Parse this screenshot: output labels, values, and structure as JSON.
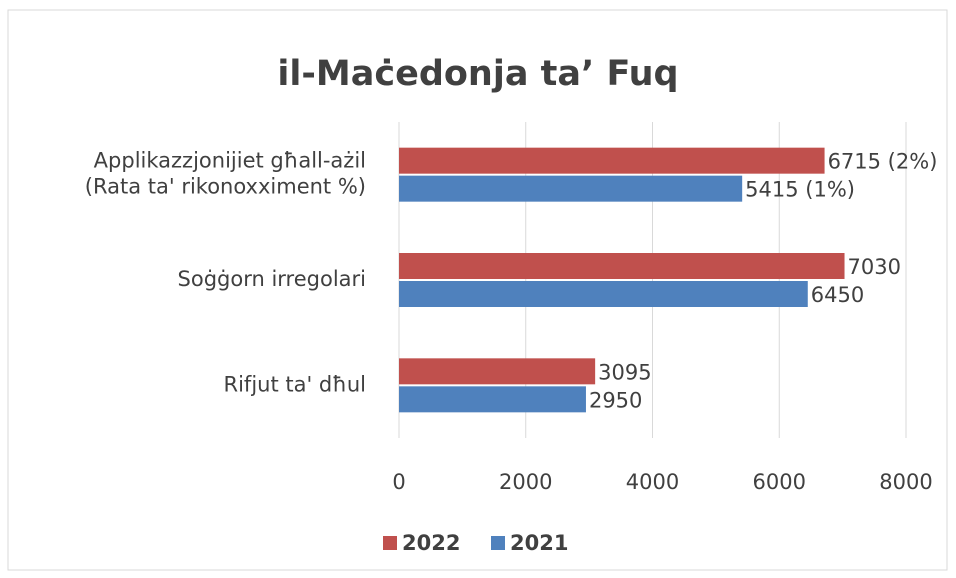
{
  "chart_data": {
    "type": "hbar",
    "title": "il-Maċedonja ta’ Fuq",
    "categories": [
      [
        "Applikazzjonijiet għall-ażil",
        "(Rata ta' rikonoxximent %)"
      ],
      [
        "Soġġorn irregolari"
      ],
      [
        "Rifjut ta' dħul"
      ]
    ],
    "series": [
      {
        "name": "2022",
        "color": "#c0504d",
        "values": [
          6715,
          7030,
          3095
        ],
        "value_labels": [
          "6715 (2%)",
          "7030",
          "3095"
        ]
      },
      {
        "name": "2021",
        "color": "#4f81bd",
        "values": [
          5415,
          6450,
          2950
        ],
        "value_labels": [
          "5415 (1%)",
          "6450",
          "2950"
        ]
      }
    ],
    "xlim": [
      0,
      8000
    ],
    "xticks": [
      0,
      2000,
      4000,
      6000,
      8000
    ],
    "grid": true,
    "legend": "bottom"
  }
}
